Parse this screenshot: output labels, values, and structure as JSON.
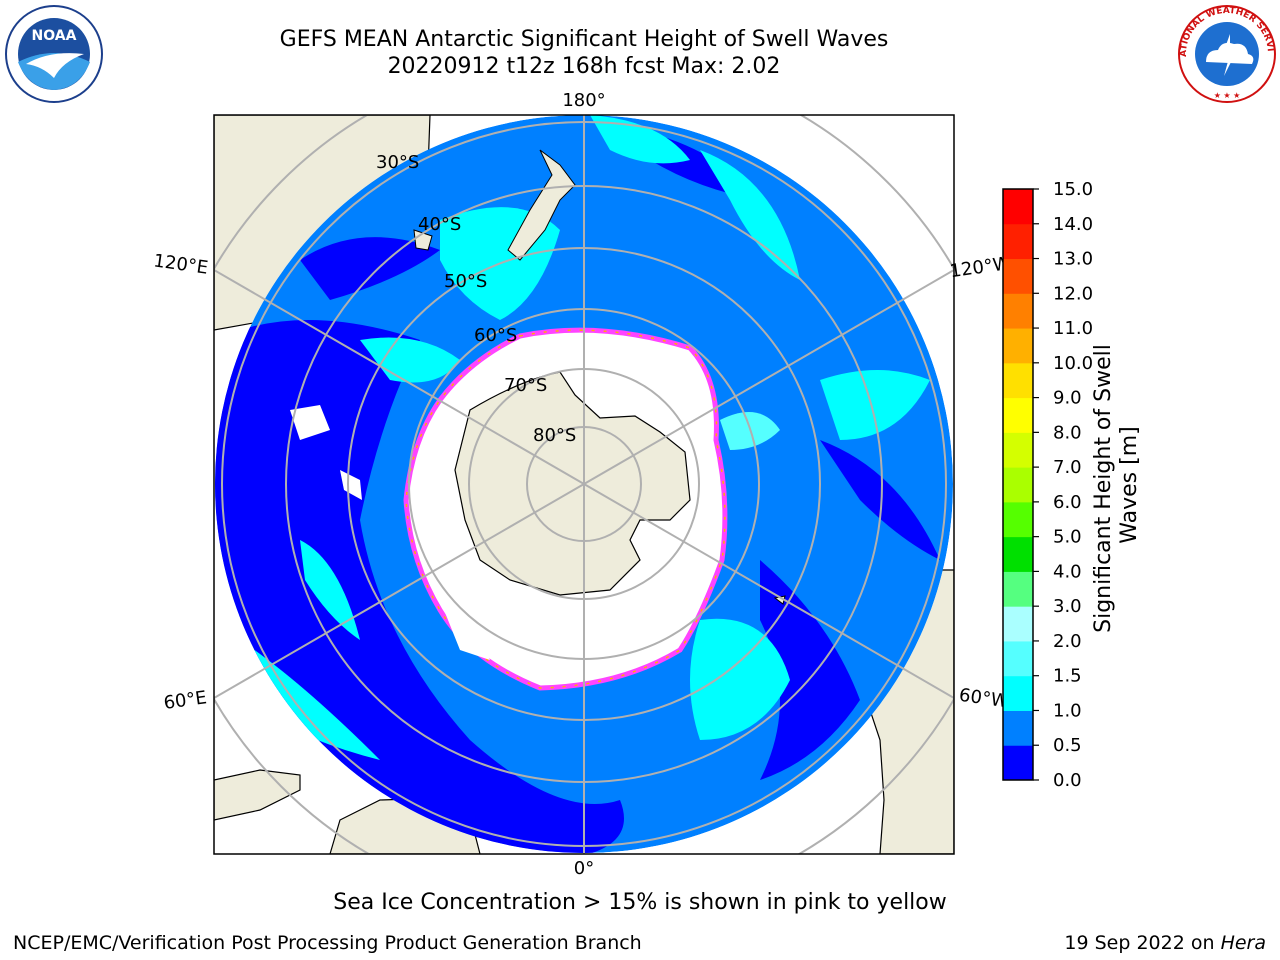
{
  "header": {
    "title_line1": "GEFS MEAN Antarctic Significant Height of Swell Waves",
    "title_line2": "20220912 t12z 168h fcst   Max: 2.02"
  },
  "logos": {
    "left": "noaa-logo",
    "right": "national-weather-service-logo",
    "left_text": "NOAA",
    "right_text": "NATIONAL WEATHER SERVICE"
  },
  "map": {
    "projection": "south-polar-stereographic",
    "longitude_labels": [
      "180°",
      "120°E",
      "120°W",
      "60°E",
      "60°W",
      "0°"
    ],
    "latitude_labels": [
      "30°S",
      "40°S",
      "50°S",
      "60°S",
      "70°S",
      "80°S"
    ],
    "colors": {
      "land": "#eeecdb",
      "ocean_dark_blue": "#0000ff",
      "ocean_blue": "#0080ff",
      "ocean_cyan": "#00ffff",
      "ocean_light_cyan": "#55ffff",
      "ice": "#ffffff",
      "ice_edge_pink": "#ff44ff",
      "ice_edge_orange": "#ffb000",
      "gridline": "#b0b0b0"
    }
  },
  "colorbar": {
    "label": "Significant Height of Swell Waves [m]",
    "ticks": [
      "0.0",
      "0.5",
      "1.0",
      "1.5",
      "2.0",
      "3.0",
      "4.0",
      "5.0",
      "6.0",
      "7.0",
      "8.0",
      "9.0",
      "10.0",
      "11.0",
      "12.0",
      "13.0",
      "14.0",
      "15.0"
    ],
    "colors": [
      "#0000ff",
      "#0080ff",
      "#00ffff",
      "#55ffff",
      "#aaffff",
      "#55ff80",
      "#00e000",
      "#55ff00",
      "#aaff00",
      "#d4ff00",
      "#ffff00",
      "#ffe000",
      "#ffb000",
      "#ff8000",
      "#ff5000",
      "#ff2000",
      "#ff0000"
    ]
  },
  "captions": {
    "ice_note": "Sea Ice Concentration > 15% is shown in pink to yellow",
    "footer_left": "NCEP/EMC/Verification Post Processing Product Generation Branch",
    "footer_right_prefix": "19 Sep 2022 on ",
    "footer_right_host": "Hera"
  }
}
